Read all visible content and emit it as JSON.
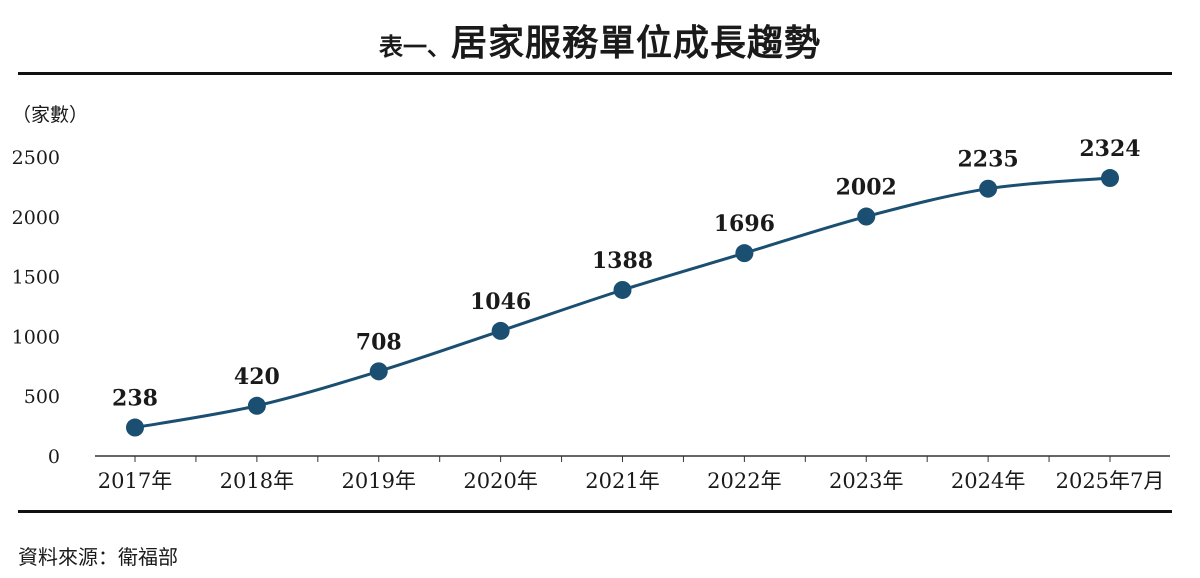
{
  "header": {
    "title_prefix": "表一、",
    "title_main": "居家服務單位成長趨勢"
  },
  "footer": {
    "source": "資料來源：衛福部"
  },
  "colors": {
    "line": "#1b4f72",
    "marker": "#1b4f72",
    "axis": "#333333",
    "rule": "#111111"
  },
  "chart_data": {
    "type": "line",
    "title": "居家服務單位成長趨勢",
    "ylabel": "（家數）",
    "xlabel": "",
    "categories": [
      "2017年",
      "2018年",
      "2019年",
      "2020年",
      "2021年",
      "2022年",
      "2023年",
      "2024年",
      "2025年7月"
    ],
    "series": [
      {
        "values": [
          238,
          420,
          708,
          1046,
          1388,
          1696,
          2002,
          2235,
          2324
        ]
      }
    ],
    "ylim": [
      0,
      2500
    ],
    "yticks": [
      0,
      500,
      1000,
      1500,
      2000,
      2500
    ],
    "data_labels": true,
    "grid": false,
    "legend": "none"
  }
}
